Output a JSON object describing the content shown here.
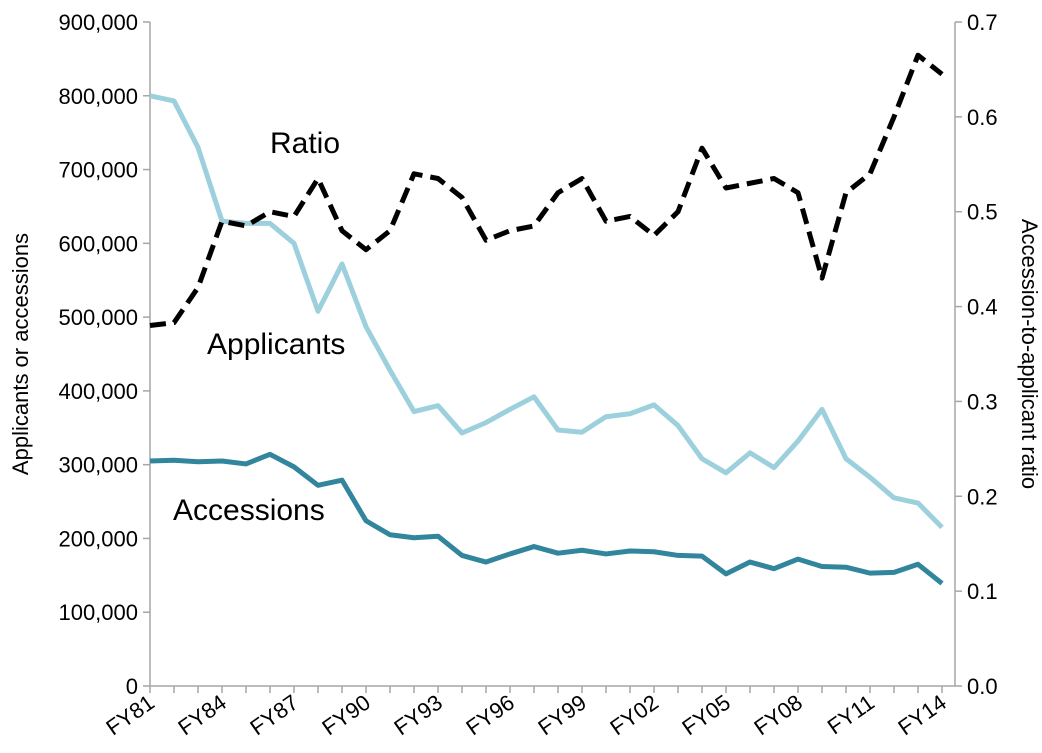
{
  "chart_data": {
    "type": "line",
    "categories": [
      "FY81",
      null,
      null,
      "FY84",
      null,
      null,
      "FY87",
      null,
      null,
      "FY90",
      null,
      null,
      "FY93",
      null,
      null,
      "FY96",
      null,
      null,
      "FY99",
      null,
      null,
      "FY02",
      null,
      null,
      "FY05",
      null,
      null,
      "FY08",
      null,
      null,
      "FY11",
      null,
      null,
      "FY14"
    ],
    "series": [
      {
        "name": "Applicants",
        "color": "#9dd0dd",
        "dash": false,
        "values": [
          800000,
          793000,
          730000,
          630000,
          627000,
          627000,
          600000,
          508000,
          572000,
          487000,
          428000,
          372000,
          380000,
          343000,
          357000,
          375000,
          392000,
          347000,
          344000,
          365000,
          369000,
          381000,
          353000,
          308000,
          289000,
          316000,
          296000,
          332000,
          375000,
          308000,
          283000,
          255000,
          248000,
          215000
        ]
      },
      {
        "name": "Accessions",
        "color": "#31859c",
        "dash": false,
        "values": [
          305000,
          306000,
          304000,
          305000,
          301000,
          314000,
          297000,
          272000,
          279000,
          224000,
          205000,
          201000,
          203000,
          177000,
          168000,
          179000,
          189000,
          180000,
          184000,
          179000,
          183000,
          182000,
          177000,
          176000,
          152000,
          168000,
          159000,
          172000,
          162000,
          161000,
          153000,
          154000,
          165000,
          139000
        ]
      },
      {
        "name": "Ratio",
        "color": "#000000",
        "dash": true,
        "axis": "y2",
        "values": [
          0.38,
          0.383,
          0.42,
          0.49,
          0.485,
          0.5,
          0.495,
          0.535,
          0.48,
          0.46,
          0.48,
          0.54,
          0.535,
          0.515,
          0.47,
          0.48,
          0.485,
          0.52,
          0.535,
          0.49,
          0.495,
          0.475,
          0.5,
          0.567,
          0.525,
          0.53,
          0.535,
          0.52,
          0.43,
          0.52,
          0.54,
          0.6,
          0.665,
          0.645
        ]
      }
    ],
    "y_label": "Applicants or accessions",
    "y2_label": "Accession-to-applicant ratio",
    "ylim": [
      0,
      900000
    ],
    "yticks": [
      0,
      {
        "value": 100000,
        "label": "100,000"
      },
      {
        "value": 200000,
        "label": "200,000"
      },
      {
        "value": 300000,
        "label": "300,000"
      },
      {
        "value": 400000,
        "label": "400,000"
      },
      {
        "value": 500000,
        "label": "500,000"
      },
      {
        "value": 600000,
        "label": "600,000"
      },
      {
        "value": 700000,
        "label": "700,000"
      },
      {
        "value": 800000,
        "label": "800,000"
      },
      {
        "value": 900000,
        "label": "900,000"
      }
    ],
    "y2lim": [
      0,
      0.7
    ],
    "y2ticks": [
      {
        "value": 0,
        "label": "0.0"
      },
      0.1,
      0.2,
      0.3,
      0.4,
      0.5,
      0.6,
      0.7
    ],
    "grid": false
  }
}
